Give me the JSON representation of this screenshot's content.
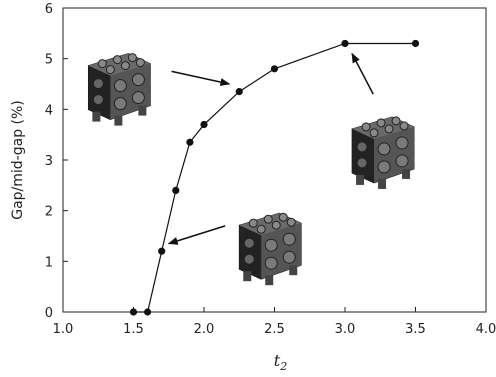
{
  "chart_data": {
    "type": "line",
    "title": "",
    "xlabel": "t",
    "xlabel_subscript": "2",
    "ylabel": "Gap/mid-gap (%)",
    "xlim": [
      1.0,
      4.0
    ],
    "ylim": [
      0,
      6
    ],
    "xticks": [
      "1.0",
      "1.5",
      "2.0",
      "2.5",
      "3.0",
      "3.5",
      "4.0"
    ],
    "yticks": [
      "0",
      "1",
      "2",
      "3",
      "4",
      "5",
      "6"
    ],
    "grid": false,
    "series": [
      {
        "x": [
          1.5,
          1.6,
          1.7,
          1.8,
          1.9,
          2.0,
          2.25,
          2.5,
          3.0,
          3.5
        ],
        "y": [
          0,
          0,
          1.2,
          2.4,
          3.35,
          3.7,
          4.35,
          4.8,
          5.3,
          5.3
        ],
        "marker": "circle",
        "color": "#111111"
      }
    ],
    "annotations": [
      {
        "type": "arrow",
        "from": [
          1.77,
          4.75
        ],
        "to": [
          2.18,
          4.5
        ],
        "image": "lattice-structure-left"
      },
      {
        "type": "arrow",
        "from": [
          2.15,
          1.7
        ],
        "to": [
          1.75,
          1.35
        ],
        "image": "lattice-structure-bottom"
      },
      {
        "type": "arrow",
        "from": [
          3.2,
          4.3
        ],
        "to": [
          3.05,
          5.1
        ],
        "image": "lattice-structure-right"
      }
    ]
  }
}
